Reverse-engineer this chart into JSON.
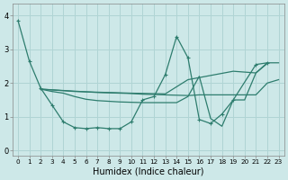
{
  "xlabel": "Humidex (Indice chaleur)",
  "background_color": "#cde8e8",
  "grid_color": "#b0d4d4",
  "line_color": "#2e7d6e",
  "xlim": [
    -0.5,
    23.5
  ],
  "ylim": [
    -0.15,
    4.35
  ],
  "xticks": [
    0,
    1,
    2,
    3,
    4,
    5,
    6,
    7,
    8,
    9,
    10,
    11,
    12,
    13,
    14,
    15,
    16,
    17,
    18,
    19,
    20,
    21,
    22,
    23
  ],
  "yticks": [
    0,
    1,
    2,
    3,
    4
  ],
  "series": [
    {
      "x": [
        0,
        1,
        2,
        3,
        4,
        5,
        6,
        7,
        8,
        9,
        10,
        11,
        12,
        13,
        14,
        15,
        16,
        17,
        18,
        19,
        21,
        22
      ],
      "y": [
        3.85,
        2.65,
        1.85,
        1.35,
        0.85,
        0.68,
        0.65,
        0.68,
        0.65,
        0.65,
        0.85,
        1.5,
        1.6,
        2.25,
        3.38,
        2.75,
        0.92,
        0.8,
        1.08,
        1.5,
        2.55,
        2.6
      ],
      "marker": "+"
    },
    {
      "x": [
        2,
        3,
        4,
        5,
        6,
        7,
        8,
        9,
        10,
        11,
        12,
        13,
        14,
        15,
        16,
        17,
        18,
        19,
        20,
        21,
        22,
        23
      ],
      "y": [
        1.82,
        1.8,
        1.78,
        1.76,
        1.74,
        1.72,
        1.71,
        1.7,
        1.69,
        1.67,
        1.66,
        1.65,
        1.64,
        1.63,
        1.65,
        1.65,
        1.65,
        1.65,
        1.65,
        1.65,
        2.0,
        2.1
      ],
      "marker": null
    },
    {
      "x": [
        2,
        3,
        4,
        5,
        6,
        7,
        8,
        9,
        10,
        11,
        12,
        13,
        14,
        15,
        16,
        17,
        18,
        19,
        20,
        21,
        22
      ],
      "y": [
        1.82,
        1.75,
        1.7,
        1.6,
        1.52,
        1.48,
        1.46,
        1.44,
        1.43,
        1.42,
        1.42,
        1.42,
        1.42,
        1.6,
        2.2,
        0.95,
        0.72,
        1.5,
        1.5,
        2.3,
        2.58
      ],
      "marker": null
    },
    {
      "x": [
        2,
        5,
        10,
        13,
        15,
        19,
        21,
        22,
        23
      ],
      "y": [
        1.82,
        1.75,
        1.7,
        1.68,
        2.1,
        2.35,
        2.3,
        2.6,
        2.6
      ],
      "marker": null
    }
  ]
}
